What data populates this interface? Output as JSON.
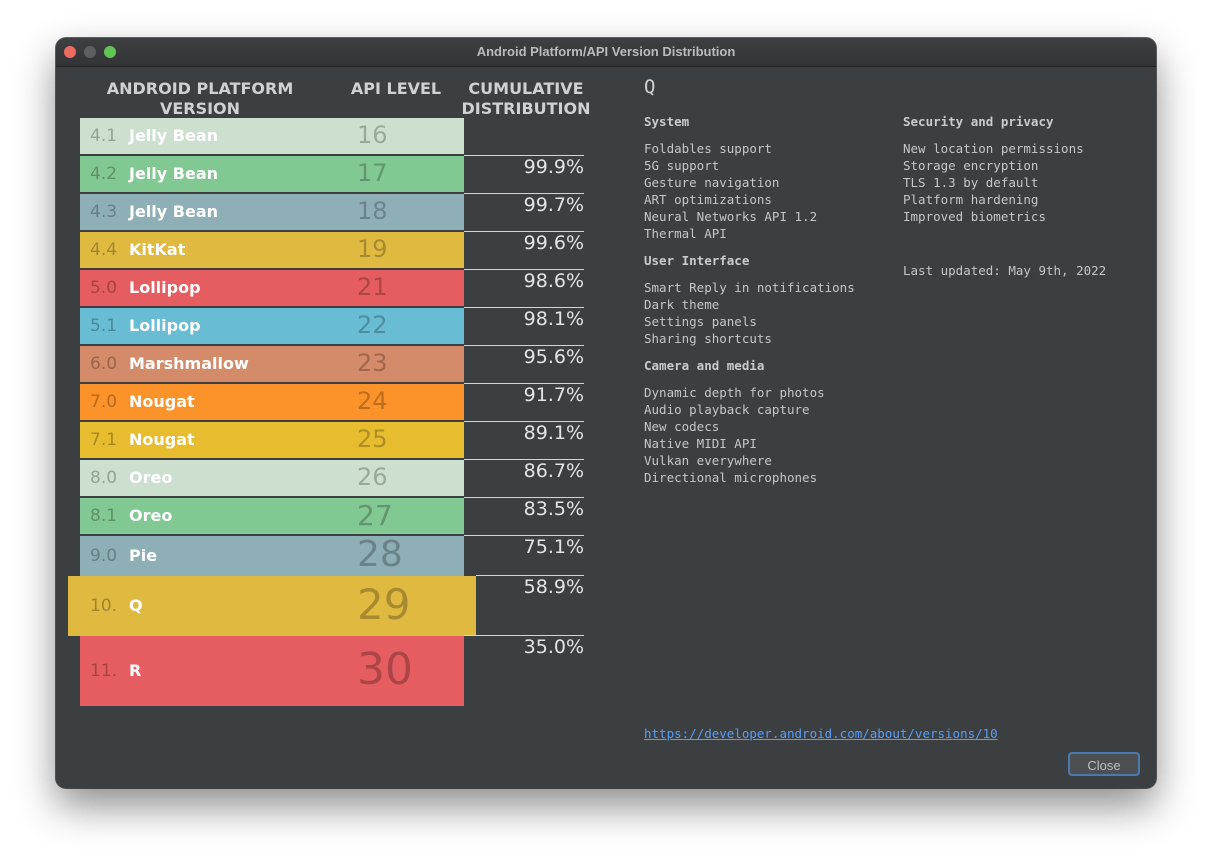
{
  "window": {
    "title": "Android Platform/API Version Distribution"
  },
  "table": {
    "headers": {
      "platform_line1": "ANDROID PLATFORM",
      "platform_line2": "VERSION",
      "api": "API LEVEL",
      "cumulative_line1": "CUMULATIVE",
      "cumulative_line2": "DISTRIBUTION"
    },
    "rows": [
      {
        "version": "4.1",
        "name": "Jelly Bean",
        "api": "16",
        "cumulative": "",
        "color": "#cde0cf"
      },
      {
        "version": "4.2",
        "name": "Jelly Bean",
        "api": "17",
        "cumulative": "99.9%",
        "color": "#82c893"
      },
      {
        "version": "4.3",
        "name": "Jelly Bean",
        "api": "18",
        "cumulative": "99.7%",
        "color": "#8fafb6"
      },
      {
        "version": "4.4",
        "name": "KitKat",
        "api": "19",
        "cumulative": "99.6%",
        "color": "#dfb940"
      },
      {
        "version": "5.0",
        "name": "Lollipop",
        "api": "21",
        "cumulative": "98.6%",
        "color": "#e55d61"
      },
      {
        "version": "5.1",
        "name": "Lollipop",
        "api": "22",
        "cumulative": "98.1%",
        "color": "#68bcd4"
      },
      {
        "version": "6.0",
        "name": "Marshmallow",
        "api": "23",
        "cumulative": "95.6%",
        "color": "#d48b69"
      },
      {
        "version": "7.0",
        "name": "Nougat",
        "api": "24",
        "cumulative": "91.7%",
        "color": "#fb922a"
      },
      {
        "version": "7.1",
        "name": "Nougat",
        "api": "25",
        "cumulative": "89.1%",
        "color": "#e8bc2f"
      },
      {
        "version": "8.0",
        "name": "Oreo",
        "api": "26",
        "cumulative": "86.7%",
        "color": "#cde0cf"
      },
      {
        "version": "8.1",
        "name": "Oreo",
        "api": "27",
        "cumulative": "83.5%",
        "color": "#82c893"
      },
      {
        "version": "9.0",
        "name": "Pie",
        "api": "28",
        "cumulative": "75.1%",
        "color": "#8fafb6"
      },
      {
        "version": "10.",
        "name": "Q",
        "api": "29",
        "cumulative": "58.9%",
        "color": "#dfb940"
      },
      {
        "version": "11.",
        "name": "R",
        "api": "30",
        "cumulative": "35.0%",
        "color": "#e55d61"
      }
    ]
  },
  "details": {
    "heading": "Q",
    "sections": {
      "system": {
        "title": "System",
        "items": [
          "Foldables support",
          "5G support",
          "Gesture navigation",
          "ART optimizations",
          "Neural Networks API 1.2",
          "Thermal API"
        ]
      },
      "ui": {
        "title": "User Interface",
        "items": [
          "Smart Reply in notifications",
          "Dark theme",
          "Settings panels",
          "Sharing shortcuts"
        ]
      },
      "camera": {
        "title": "Camera and media",
        "items": [
          "Dynamic depth for photos",
          "Audio playback capture",
          "New codecs",
          "Native MIDI API",
          "Vulkan everywhere",
          "Directional microphones"
        ]
      },
      "security": {
        "title": "Security and privacy",
        "items": [
          "New location permissions",
          "Storage encryption",
          "TLS 1.3 by default",
          "Platform hardening",
          "Improved biometrics"
        ]
      }
    },
    "last_updated": "Last updated: May 9th, 2022",
    "link": "https://developer.android.com/about/versions/10"
  },
  "buttons": {
    "close": "Close"
  }
}
